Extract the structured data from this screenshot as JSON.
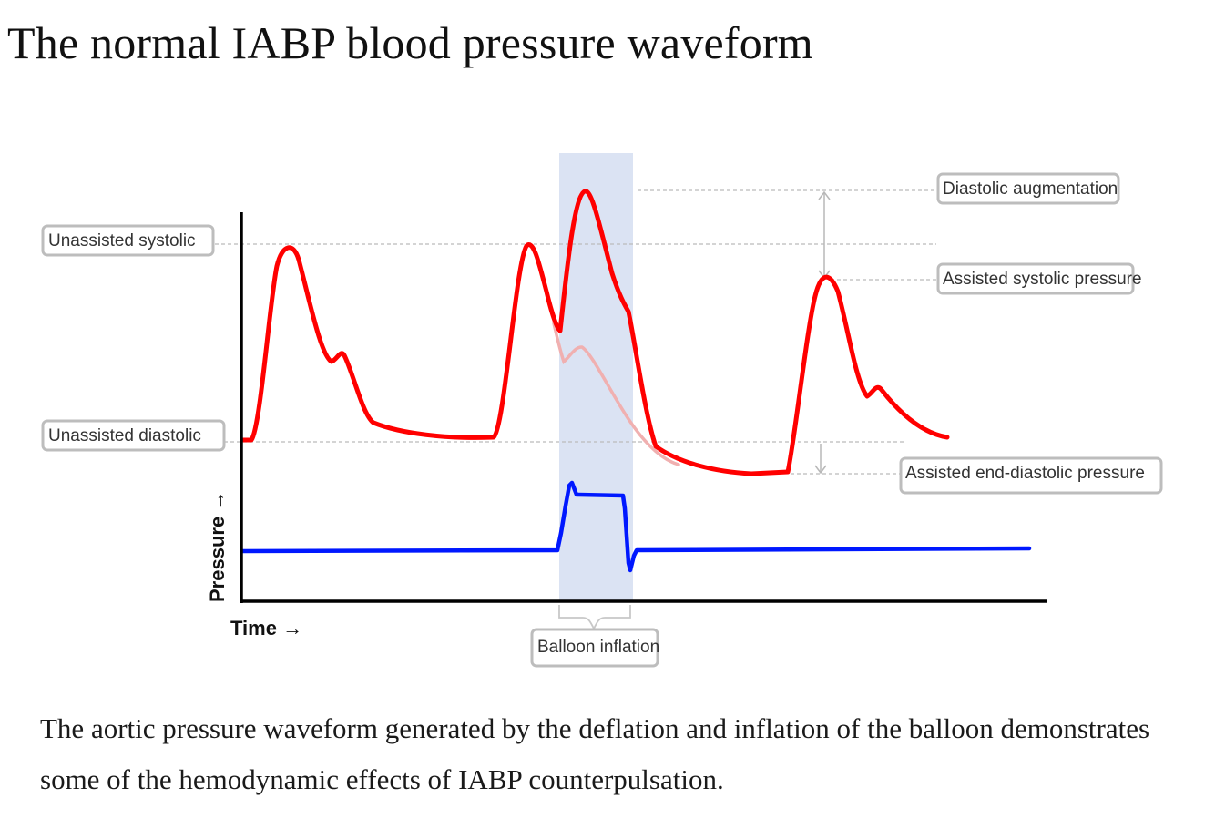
{
  "page": {
    "title": "The normal IABP blood pressure waveform",
    "caption": "The aortic pressure waveform generated by the deflation and inflation of the balloon demonstrates some of the hemodynamic effects of IABP counterpulsation."
  },
  "diagram": {
    "axes": {
      "y_label": "Pressure →",
      "x_label": "Time →"
    },
    "labels": {
      "unassisted_systolic": "Unassisted systolic",
      "unassisted_diastolic": "Unassisted diastolic",
      "diastolic_augmentation": "Diastolic augmentation",
      "assisted_systolic": "Assisted systolic pressure",
      "assisted_end_diastolic": "Assisted end-diastolic pressure",
      "balloon_inflation": "Balloon inflation"
    },
    "colors": {
      "pressure_wave": "#ff0000",
      "unassisted_wave": "#f0b0b0",
      "balloon_wave": "#0018ff",
      "inflation_band": "#dbe3f3",
      "axis": "#000000",
      "guide": "#bbbbbb",
      "label_border": "#bdbdbd"
    }
  }
}
